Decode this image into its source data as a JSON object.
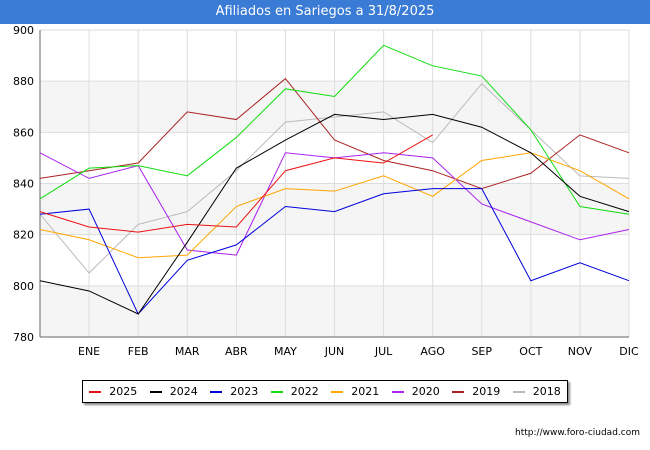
{
  "title": "Afiliados en Sariegos a 31/8/2025",
  "source": "http://www.foro-ciudad.com",
  "chart_data": {
    "type": "line",
    "title": "Afiliados en Sariegos a 31/8/2025",
    "categories": [
      "",
      "ENE",
      "FEB",
      "MAR",
      "ABR",
      "MAY",
      "JUN",
      "JUL",
      "AGO",
      "SEP",
      "OCT",
      "NOV",
      "DIC"
    ],
    "ylim": [
      780,
      900
    ],
    "yticks": [
      780,
      800,
      820,
      840,
      860,
      880,
      900
    ],
    "grid": true,
    "legend_position": "bottom",
    "series": [
      {
        "name": "2025",
        "color": "#ee1111",
        "values": [
          829,
          823,
          821,
          824,
          823,
          845,
          850,
          848,
          859,
          null,
          null,
          null,
          null
        ]
      },
      {
        "name": "2024",
        "color": "#000000",
        "values": [
          802,
          798,
          789,
          817,
          846,
          857,
          867,
          865,
          867,
          862,
          852,
          835,
          829
        ]
      },
      {
        "name": "2023",
        "color": "#0000dd",
        "values": [
          828,
          830,
          789,
          810,
          816,
          831,
          829,
          836,
          838,
          838,
          802,
          809,
          802
        ]
      },
      {
        "name": "2022",
        "color": "#11dd11",
        "values": [
          834,
          846,
          847,
          843,
          858,
          877,
          874,
          894,
          886,
          882,
          861,
          831,
          828
        ]
      },
      {
        "name": "2021",
        "color": "#ffa500",
        "values": [
          822,
          818,
          811,
          812,
          831,
          838,
          837,
          843,
          835,
          849,
          852,
          845,
          834
        ]
      },
      {
        "name": "2020",
        "color": "#aa22ee",
        "values": [
          852,
          842,
          847,
          814,
          812,
          852,
          850,
          852,
          850,
          832,
          825,
          818,
          822
        ]
      },
      {
        "name": "2019",
        "color": "#aa2222",
        "values": [
          842,
          845,
          848,
          868,
          865,
          881,
          857,
          849,
          845,
          838,
          844,
          859,
          852
        ]
      },
      {
        "name": "2018",
        "color": "#bbbbbb",
        "values": [
          828,
          805,
          824,
          829,
          845,
          864,
          866,
          868,
          856,
          879,
          861,
          843,
          842
        ]
      }
    ]
  }
}
